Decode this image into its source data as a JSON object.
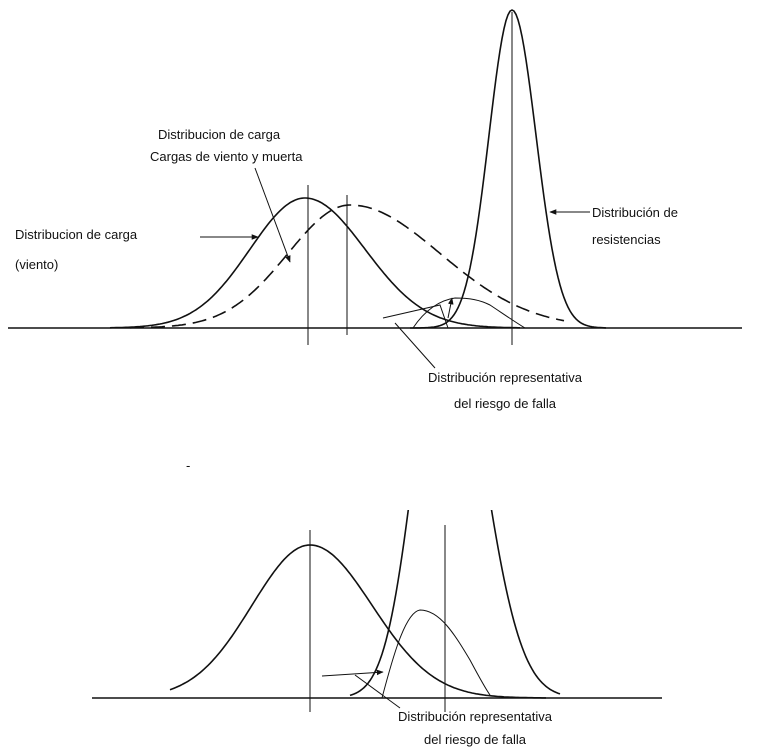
{
  "labels": {
    "combined_load": [
      "Distribucion de carga",
      "Cargas de viento y muerta"
    ],
    "wind_load": [
      "Distribucion de carga",
      "(viento)"
    ],
    "resistance": [
      "Distribución de",
      "resistencias"
    ],
    "failure_top": [
      "Distribución representativa",
      "del riesgo de falla"
    ],
    "failure_bottom": [
      "Distribución representativa",
      "del riesgo de falla"
    ],
    "dash": "-"
  }
}
